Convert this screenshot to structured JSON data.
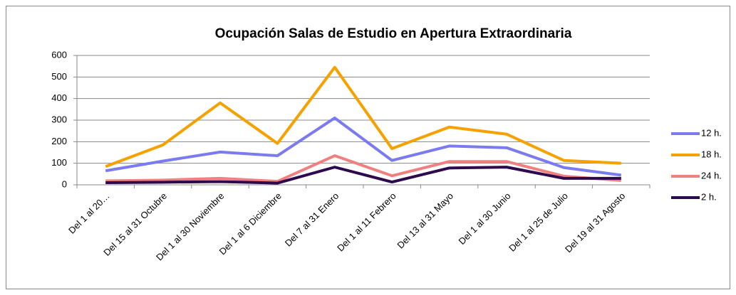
{
  "chart_data": {
    "type": "line",
    "title": "Ocupación Salas de Estudio en Apertura Extraordinaria",
    "categories": [
      "Del 1 al 20…",
      "Del 15 al 31 Octubre",
      "Del 1 al 30 Noviembre",
      "Del 1 al 6 Diciembre",
      "Del 7 al 31 Enero",
      "Del 1 al 11 Febrero",
      "Del 13 al 31 Mayo",
      "Del 1 al 30 Junio",
      "Del 1 al 25 de Julio",
      "Del 19 al 31 Agosto"
    ],
    "series": [
      {
        "name": "12 h.",
        "color": "#7b7bf0",
        "values": [
          65,
          110,
          152,
          135,
          310,
          113,
          180,
          172,
          80,
          45
        ]
      },
      {
        "name": "18 h.",
        "color": "#f5a100",
        "values": [
          85,
          185,
          380,
          192,
          545,
          168,
          268,
          235,
          113,
          100
        ]
      },
      {
        "name": "24 h.",
        "color": "#f08080",
        "values": [
          18,
          22,
          30,
          16,
          135,
          42,
          108,
          108,
          40,
          20
        ]
      },
      {
        "name": "2 h.",
        "color": "#2d0a4e",
        "values": [
          10,
          12,
          15,
          8,
          82,
          13,
          78,
          82,
          30,
          30
        ]
      }
    ],
    "ylim": [
      0,
      600
    ],
    "yticks": [
      0,
      100,
      200,
      300,
      400,
      500,
      600
    ],
    "grid": true,
    "legend": "right"
  }
}
